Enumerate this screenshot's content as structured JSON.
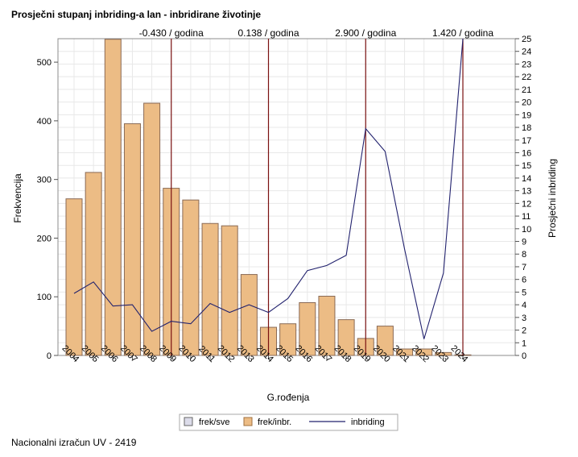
{
  "title": "Prosječni stupanj inbriding-a lan - inbridirane životinje",
  "footnote": "Nacionalni izračun UV - 2419",
  "chart_data": {
    "type": "bar",
    "title": "Prosječni stupanj inbriding-a lan - inbridirane životinje",
    "xlabel": "G.rođenja",
    "ylabel": "Frekvencija",
    "y2label": "Prosječni inbriding",
    "ylim": [
      0,
      540
    ],
    "y2lim": [
      0,
      25
    ],
    "yticks": [
      0,
      100,
      200,
      300,
      400,
      500
    ],
    "y2ticks": [
      0,
      1,
      2,
      3,
      4,
      5,
      6,
      7,
      8,
      9,
      10,
      11,
      12,
      13,
      14,
      15,
      16,
      17,
      18,
      19,
      20,
      21,
      22,
      23,
      24,
      25
    ],
    "categories": [
      "2004",
      "2005",
      "2006",
      "2007",
      "2008",
      "2009",
      "2010",
      "2011",
      "2012",
      "2013",
      "2014",
      "2015",
      "2016",
      "2017",
      "2018",
      "2019",
      "2020",
      "2021",
      "2022",
      "2023",
      "2024"
    ],
    "series": [
      {
        "name": "frek/sve",
        "type": "bar",
        "color": "#dcdcea",
        "values": [
          0,
          0,
          0,
          0,
          0,
          0,
          0,
          0,
          0,
          0,
          0,
          0,
          0,
          0,
          0,
          0,
          0,
          0,
          0,
          0,
          0
        ]
      },
      {
        "name": "frek/inbr.",
        "type": "bar",
        "color": "#ecbc85",
        "values": [
          267,
          312,
          539,
          395,
          430,
          285,
          265,
          225,
          221,
          138,
          48,
          54,
          90,
          101,
          61,
          29,
          50,
          11,
          11,
          5,
          1
        ]
      },
      {
        "name": "inbriding",
        "type": "line",
        "axis": "y2",
        "color": "#22226e",
        "values": [
          4.9,
          5.8,
          3.9,
          4.0,
          1.9,
          2.7,
          2.5,
          4.1,
          3.4,
          4.0,
          3.4,
          4.5,
          6.7,
          7.1,
          7.9,
          17.9,
          16.1,
          8.4,
          1.3,
          6.5,
          25.0
        ]
      }
    ],
    "reference_lines": [
      {
        "category": "2009",
        "label": "-0.430 / godina"
      },
      {
        "category": "2014",
        "label": "0.138 / godina"
      },
      {
        "category": "2019",
        "label": "2.900 / godina"
      },
      {
        "category": "2024",
        "label": "1.420 / godina"
      }
    ],
    "grid": true,
    "legend_position": "bottom"
  }
}
